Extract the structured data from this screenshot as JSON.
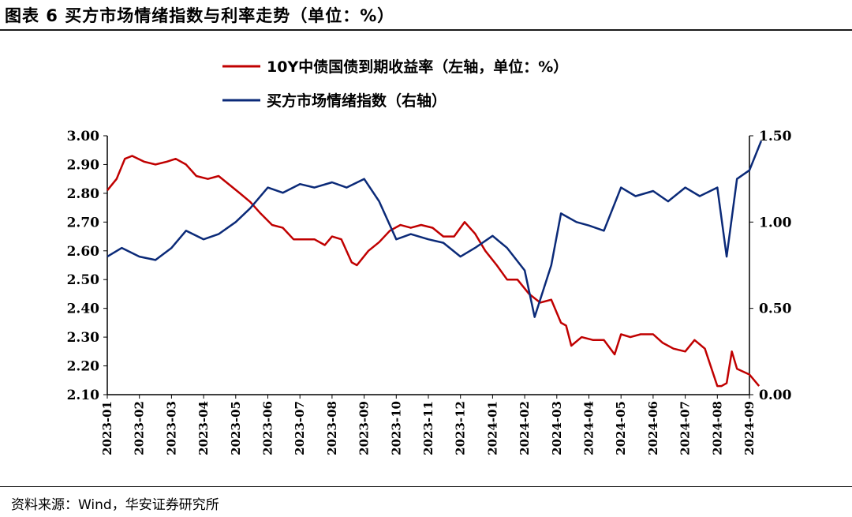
{
  "figure": {
    "title": "图表 6  买方市场情绪指数与利率走势（单位：%）",
    "source": "资料来源：Wind，华安证券研究所"
  },
  "colors": {
    "red_series": "#c00000",
    "blue_series": "#0b2a78",
    "axis": "#000000"
  },
  "chart_data": {
    "type": "line",
    "title": "图表 6  买方市场情绪指数与利率走势（单位：%）",
    "legend_position": "top-center",
    "grid": false,
    "x_ticks": [
      "2023-01",
      "2023-02",
      "2023-03",
      "2023-04",
      "2023-05",
      "2023-06",
      "2023-07",
      "2023-08",
      "2023-09",
      "2023-10",
      "2023-11",
      "2023-12",
      "2024-01",
      "2024-02",
      "2024-03",
      "2024-04",
      "2024-05",
      "2024-06",
      "2024-07",
      "2024-08",
      "2024-09"
    ],
    "y_left": {
      "range": [
        2.1,
        3.0
      ],
      "ticks": [
        "3.00",
        "2.90",
        "2.80",
        "2.70",
        "2.60",
        "2.50",
        "2.40",
        "2.30",
        "2.20",
        "2.10"
      ]
    },
    "y_right": {
      "range": [
        0.0,
        1.5
      ],
      "ticks": [
        "1.50",
        "1.00",
        "0.50",
        "0.00"
      ]
    },
    "series": [
      {
        "name": "10Y中债国债到期收益率（左轴，单位：%）",
        "axis": "left",
        "color": "#c00000",
        "points": [
          [
            "2023-01-01",
            2.81
          ],
          [
            "2023-01-10",
            2.85
          ],
          [
            "2023-01-18",
            2.92
          ],
          [
            "2023-01-25",
            2.93
          ],
          [
            "2023-02-05",
            2.91
          ],
          [
            "2023-02-15",
            2.9
          ],
          [
            "2023-02-25",
            2.91
          ],
          [
            "2023-03-05",
            2.92
          ],
          [
            "2023-03-15",
            2.9
          ],
          [
            "2023-03-25",
            2.86
          ],
          [
            "2023-04-05",
            2.85
          ],
          [
            "2023-04-15",
            2.86
          ],
          [
            "2023-04-25",
            2.83
          ],
          [
            "2023-05-05",
            2.8
          ],
          [
            "2023-05-15",
            2.77
          ],
          [
            "2023-05-25",
            2.73
          ],
          [
            "2023-06-05",
            2.69
          ],
          [
            "2023-06-15",
            2.68
          ],
          [
            "2023-06-25",
            2.64
          ],
          [
            "2023-07-05",
            2.64
          ],
          [
            "2023-07-15",
            2.64
          ],
          [
            "2023-07-25",
            2.62
          ],
          [
            "2023-08-01",
            2.65
          ],
          [
            "2023-08-10",
            2.64
          ],
          [
            "2023-08-20",
            2.56
          ],
          [
            "2023-08-25",
            2.55
          ],
          [
            "2023-09-05",
            2.6
          ],
          [
            "2023-09-15",
            2.63
          ],
          [
            "2023-09-25",
            2.67
          ],
          [
            "2023-10-05",
            2.69
          ],
          [
            "2023-10-15",
            2.68
          ],
          [
            "2023-10-25",
            2.69
          ],
          [
            "2023-11-05",
            2.68
          ],
          [
            "2023-11-15",
            2.65
          ],
          [
            "2023-11-25",
            2.65
          ],
          [
            "2023-12-05",
            2.7
          ],
          [
            "2023-12-15",
            2.66
          ],
          [
            "2023-12-25",
            2.6
          ],
          [
            "2024-01-05",
            2.55
          ],
          [
            "2024-01-15",
            2.5
          ],
          [
            "2024-01-25",
            2.5
          ],
          [
            "2024-02-05",
            2.45
          ],
          [
            "2024-02-15",
            2.42
          ],
          [
            "2024-02-25",
            2.43
          ],
          [
            "2024-03-05",
            2.35
          ],
          [
            "2024-03-10",
            2.34
          ],
          [
            "2024-03-15",
            2.27
          ],
          [
            "2024-03-25",
            2.3
          ],
          [
            "2024-04-05",
            2.29
          ],
          [
            "2024-04-15",
            2.29
          ],
          [
            "2024-04-25",
            2.24
          ],
          [
            "2024-05-01",
            2.31
          ],
          [
            "2024-05-10",
            2.3
          ],
          [
            "2024-05-20",
            2.31
          ],
          [
            "2024-06-01",
            2.31
          ],
          [
            "2024-06-10",
            2.28
          ],
          [
            "2024-06-20",
            2.26
          ],
          [
            "2024-07-01",
            2.25
          ],
          [
            "2024-07-10",
            2.29
          ],
          [
            "2024-07-20",
            2.26
          ],
          [
            "2024-08-01",
            2.13
          ],
          [
            "2024-08-05",
            2.13
          ],
          [
            "2024-08-10",
            2.14
          ],
          [
            "2024-08-15",
            2.25
          ],
          [
            "2024-08-20",
            2.19
          ],
          [
            "2024-09-01",
            2.17
          ],
          [
            "2024-09-10",
            2.13
          ]
        ]
      },
      {
        "name": "买方市场情绪指数（右轴）",
        "axis": "right",
        "color": "#0b2a78",
        "points": [
          [
            "2023-01-01",
            0.8
          ],
          [
            "2023-01-15",
            0.85
          ],
          [
            "2023-02-01",
            0.8
          ],
          [
            "2023-02-15",
            0.78
          ],
          [
            "2023-03-01",
            0.85
          ],
          [
            "2023-03-15",
            0.95
          ],
          [
            "2023-04-01",
            0.9
          ],
          [
            "2023-04-15",
            0.93
          ],
          [
            "2023-05-01",
            1.0
          ],
          [
            "2023-05-15",
            1.08
          ],
          [
            "2023-06-01",
            1.2
          ],
          [
            "2023-06-15",
            1.17
          ],
          [
            "2023-07-01",
            1.22
          ],
          [
            "2023-07-15",
            1.2
          ],
          [
            "2023-08-01",
            1.23
          ],
          [
            "2023-08-15",
            1.2
          ],
          [
            "2023-09-01",
            1.25
          ],
          [
            "2023-09-15",
            1.12
          ],
          [
            "2023-10-01",
            0.9
          ],
          [
            "2023-10-15",
            0.93
          ],
          [
            "2023-11-01",
            0.9
          ],
          [
            "2023-11-15",
            0.88
          ],
          [
            "2023-12-01",
            0.8
          ],
          [
            "2023-12-15",
            0.85
          ],
          [
            "2024-01-01",
            0.92
          ],
          [
            "2024-01-15",
            0.85
          ],
          [
            "2024-02-01",
            0.72
          ],
          [
            "2024-02-10",
            0.45
          ],
          [
            "2024-02-25",
            0.75
          ],
          [
            "2024-03-05",
            1.05
          ],
          [
            "2024-03-20",
            1.0
          ],
          [
            "2024-04-01",
            0.98
          ],
          [
            "2024-04-15",
            0.95
          ],
          [
            "2024-05-01",
            1.2
          ],
          [
            "2024-05-15",
            1.15
          ],
          [
            "2024-06-01",
            1.18
          ],
          [
            "2024-06-15",
            1.12
          ],
          [
            "2024-07-01",
            1.2
          ],
          [
            "2024-07-15",
            1.15
          ],
          [
            "2024-08-01",
            1.2
          ],
          [
            "2024-08-10",
            0.8
          ],
          [
            "2024-08-20",
            1.25
          ],
          [
            "2024-09-01",
            1.3
          ],
          [
            "2024-09-12",
            1.47
          ]
        ]
      }
    ]
  }
}
